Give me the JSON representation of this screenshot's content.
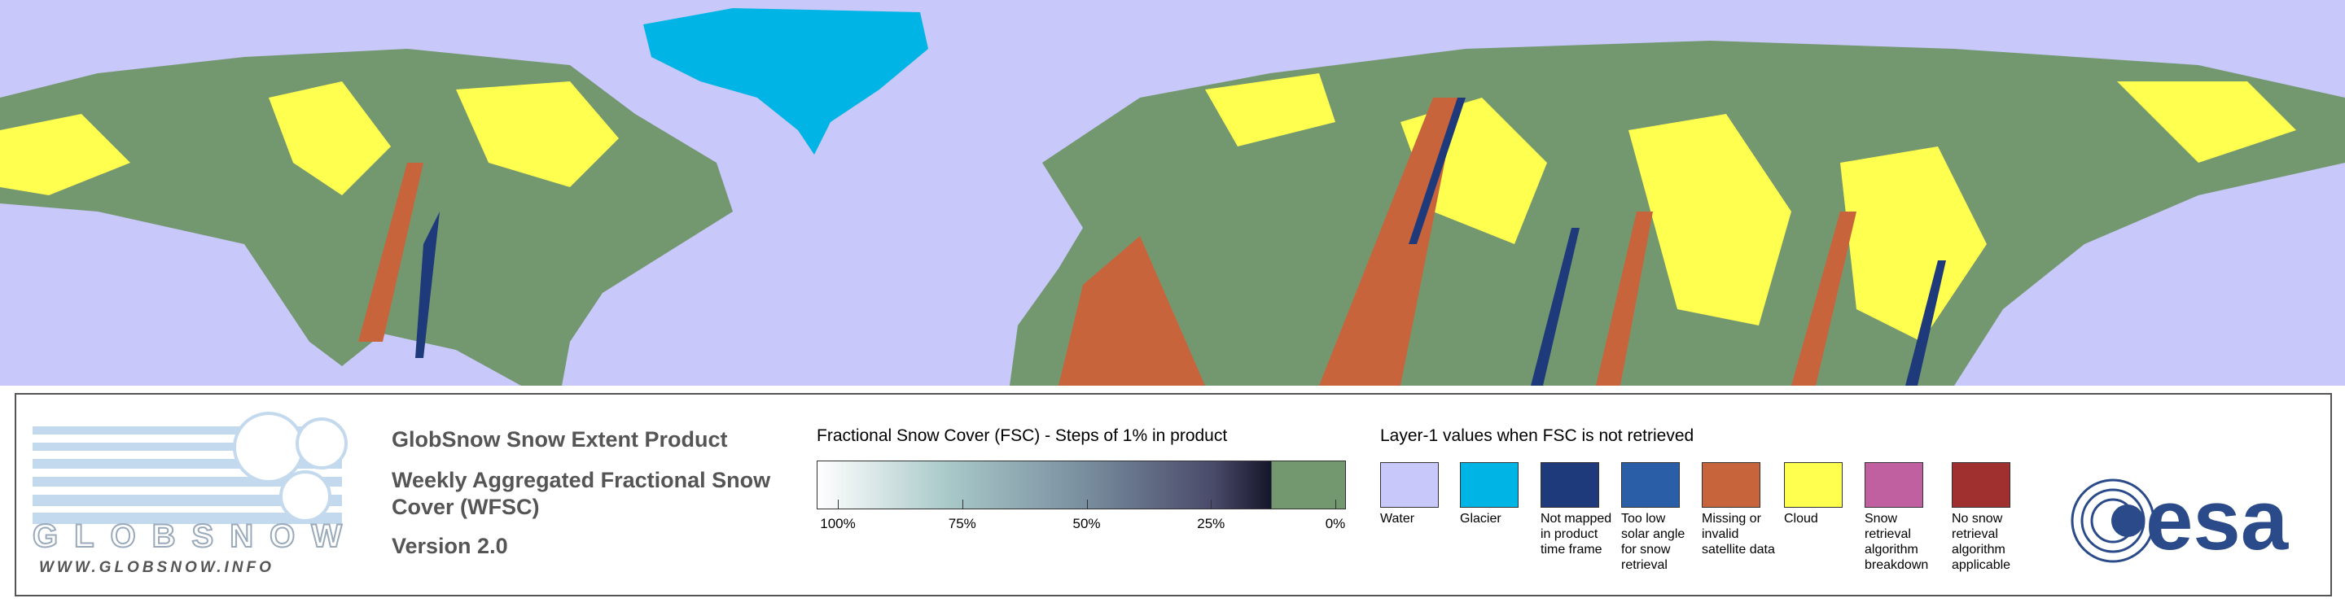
{
  "logo": {
    "name": "GLOBSNOW",
    "url": "WWW.GLOBSNOW.INFO"
  },
  "product": {
    "title": "GlobSnow Snow Extent Product",
    "subtitle": "Weekly Aggregated Fractional Snow Cover (WFSC)",
    "version": "Version 2.0"
  },
  "colorbar": {
    "title": "Fractional Snow Cover (FSC) - Steps of 1% in product",
    "ticks": [
      "100%",
      "75%",
      "50%",
      "25%",
      "0%"
    ]
  },
  "classes": {
    "title": "Layer-1 values when FSC is not retrieved",
    "items": [
      {
        "label": "Water",
        "color": "#c8c8fa"
      },
      {
        "label": "Glacier",
        "color": "#00b4e6"
      },
      {
        "label": "Not mapped in product time frame",
        "color": "#1f3a7a"
      },
      {
        "label": "Too low solar angle for snow retrieval",
        "color": "#2a5fa8"
      },
      {
        "label": "Missing or invalid satellite data",
        "color": "#c8643c"
      },
      {
        "label": "Cloud",
        "color": "#ffff50"
      },
      {
        "label": "Snow retrieval algorithm breakdown",
        "color": "#c060a0"
      },
      {
        "label": "No snow retrieval algorithm applicable",
        "color": "#a03030"
      }
    ]
  },
  "agency": "esa"
}
